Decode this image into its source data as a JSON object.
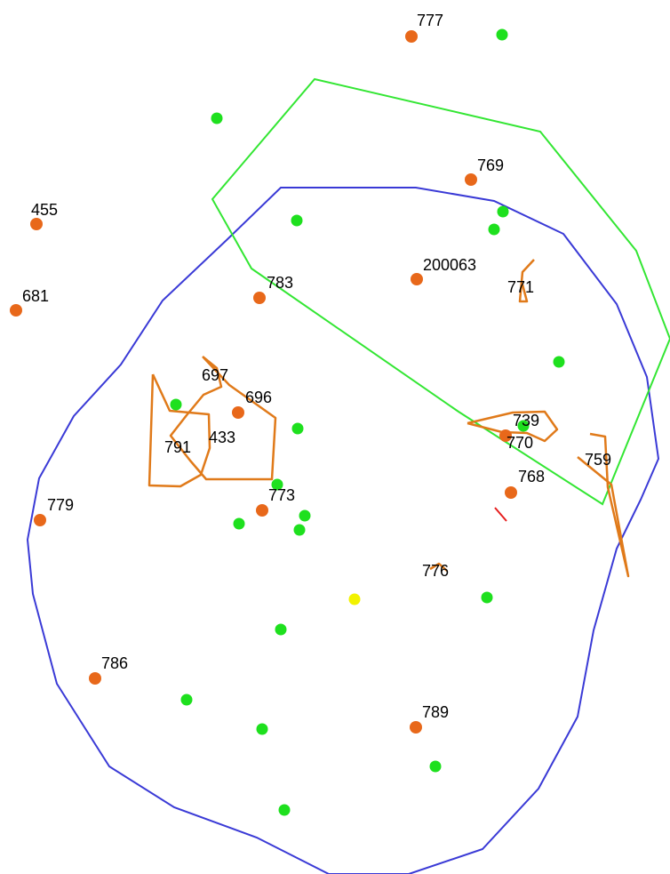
{
  "colors": {
    "background": "#ffffff",
    "blue_boundary": "#3a3ad6",
    "green_boundary": "#33e633",
    "orange": "#e8681a",
    "orange_line": "#e07a1a",
    "green_point": "#1ee01e",
    "yellow_point": "#f2f200",
    "red_segment": "#e61e1e",
    "label": "#000000"
  },
  "labels": {
    "l777": "777",
    "l769": "769",
    "l455": "455",
    "l200063": "200063",
    "l771": "771",
    "l783": "783",
    "l681": "681",
    "l697": "697",
    "l696": "696",
    "l433": "433",
    "l791": "791",
    "l739": "739",
    "l770": "770",
    "l759": "759",
    "l768": "768",
    "l773": "773",
    "l779": "779",
    "l776": "776",
    "l786": "786",
    "l789": "789"
  }
}
